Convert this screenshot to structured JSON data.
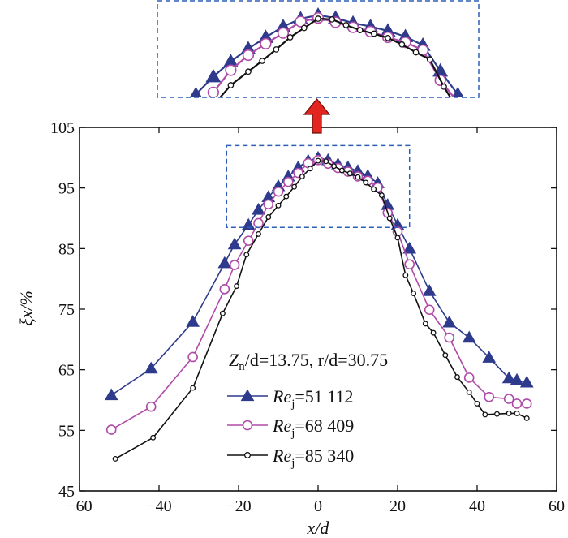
{
  "chart_data": {
    "type": "line",
    "xlabel": "x/d",
    "ylabel": "ξx/%",
    "xlim": [
      -60,
      60
    ],
    "ylim": [
      45,
      105
    ],
    "xticks": [
      -60,
      -40,
      -20,
      0,
      20,
      40,
      60
    ],
    "yticks": [
      45,
      55,
      65,
      75,
      85,
      95,
      105
    ],
    "xtick_labels": [
      "−60",
      "−40",
      "−20",
      "0",
      "20",
      "40",
      "60"
    ],
    "ytick_labels": [
      "45",
      "55",
      "65",
      "75",
      "85",
      "95",
      "105"
    ],
    "annotation": {
      "z_symbol": "Z",
      "z_sub": "n",
      "z_rest": "/d=13.75, r/d=30.75"
    },
    "legend_placement": "center-bottom",
    "series": [
      {
        "name": "Re_j=51 112",
        "label_main": "Re",
        "label_sub": "j",
        "label_value": "=51 112",
        "color": "#2e3a8c",
        "marker": "triangle",
        "x": [
          -52,
          -42,
          -31.5,
          -23.5,
          -21,
          -17.5,
          -15,
          -12.5,
          -10,
          -7.5,
          -5,
          -2.5,
          0,
          2.5,
          5,
          7.5,
          10,
          12.5,
          15,
          17.5,
          20,
          23,
          28,
          33,
          38,
          43,
          48,
          50,
          52.5
        ],
        "y": [
          60.8,
          65.2,
          72.9,
          82.6,
          85.7,
          88.9,
          91.4,
          93.5,
          95.3,
          96.9,
          98.4,
          99.5,
          100.0,
          99.6,
          98.9,
          98.4,
          97.8,
          97.0,
          95.8,
          92.2,
          88.9,
          85.0,
          78.0,
          72.8,
          70.3,
          67.0,
          63.6,
          63.3,
          62.9
        ]
      },
      {
        "name": "Re_j=68 409",
        "label_main": "Re",
        "label_sub": "j",
        "label_value": "=68 409",
        "color": "#b04aa8",
        "marker": "circle",
        "x": [
          -52,
          -42,
          -31.5,
          -23.5,
          -21,
          -17.5,
          -15,
          -12.5,
          -10,
          -7.5,
          -5,
          -2.5,
          0,
          2.5,
          5,
          7.5,
          10,
          12.5,
          15,
          17.5,
          20,
          23,
          28,
          33,
          38,
          43,
          48,
          50,
          52.5
        ],
        "y": [
          55.1,
          58.9,
          67.1,
          78.3,
          82.3,
          86.3,
          89.2,
          92.3,
          94.4,
          96.0,
          97.5,
          99.1,
          99.6,
          99.0,
          98.3,
          97.7,
          96.9,
          96.2,
          95.1,
          90.9,
          87.8,
          82.4,
          74.9,
          70.3,
          63.7,
          60.5,
          60.2,
          59.4,
          59.4
        ]
      },
      {
        "name": "Re_j=85 340",
        "label_main": "Re",
        "label_sub": "j",
        "label_value": "=85 340",
        "color": "#111111",
        "marker": "small-circle",
        "x": [
          -51,
          -41.5,
          -31.5,
          -24,
          -20.5,
          -18,
          -15,
          -12.5,
          -10,
          -8,
          -6,
          -4,
          -2,
          0,
          2,
          4,
          6,
          8,
          10,
          12,
          14,
          16,
          18,
          20,
          22,
          24,
          27,
          29,
          32,
          35,
          38,
          40,
          42,
          45,
          48,
          50,
          52.5
        ],
        "y": [
          50.3,
          53.8,
          62.0,
          74.3,
          78.8,
          84.0,
          87.4,
          90.2,
          92.1,
          93.6,
          95.2,
          96.9,
          98.2,
          99.5,
          99.4,
          98.6,
          97.9,
          97.4,
          96.8,
          95.9,
          94.8,
          93.8,
          90.0,
          86.8,
          80.6,
          77.6,
          72.6,
          71.1,
          67.4,
          63.8,
          61.3,
          59.4,
          57.6,
          57.7,
          57.8,
          57.8,
          57.0
        ]
      }
    ],
    "zoom_box": {
      "x": [
        -23,
        23
      ],
      "y": [
        88.5,
        102
      ]
    }
  }
}
